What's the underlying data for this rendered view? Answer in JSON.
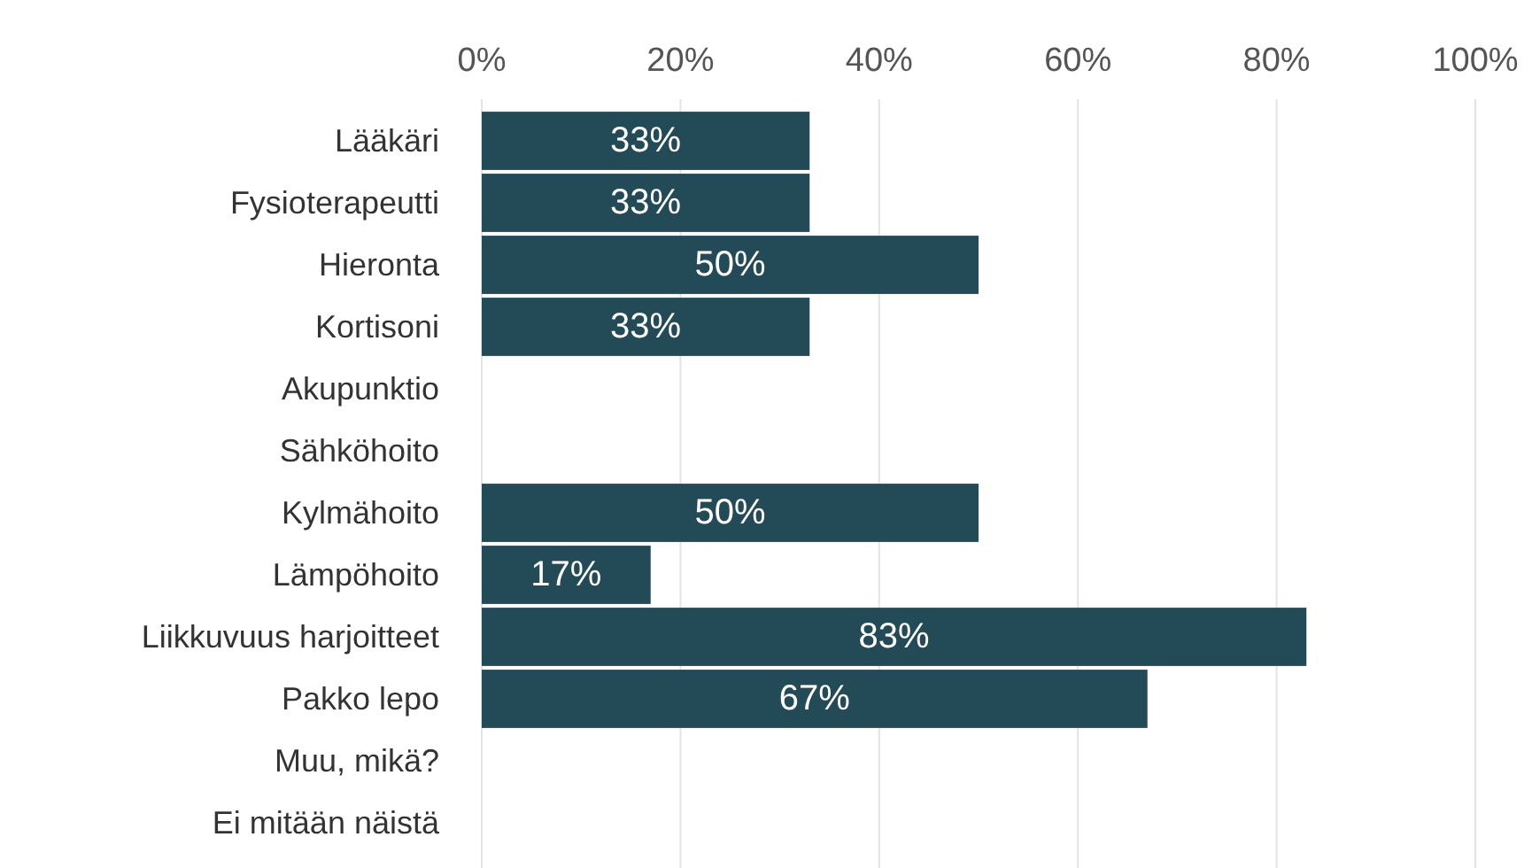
{
  "chart_data": {
    "type": "bar",
    "orientation": "horizontal",
    "categories": [
      "Lääkäri",
      "Fysioterapeutti",
      "Hieronta",
      "Kortisoni",
      "Akupunktio",
      "Sähköhoito",
      "Kylmähoito",
      "Lämpöhoito",
      "Liikkuvuus harjoitteet",
      "Pakko lepo",
      "Muu, mikä?",
      "Ei mitään näistä"
    ],
    "values": [
      33,
      33,
      50,
      33,
      0,
      0,
      50,
      17,
      83,
      67,
      0,
      0
    ],
    "value_labels": [
      "33%",
      "33%",
      "50%",
      "33%",
      null,
      null,
      "50%",
      "17%",
      "83%",
      "67%",
      null,
      null
    ],
    "color": "#234a57",
    "xlim": [
      0,
      100
    ],
    "xticks": [
      {
        "value": 0,
        "label": "0%"
      },
      {
        "value": 20,
        "label": "20%"
      },
      {
        "value": 40,
        "label": "40%"
      },
      {
        "value": 60,
        "label": "60%"
      },
      {
        "value": 80,
        "label": "80%"
      },
      {
        "value": 100,
        "label": "100%"
      }
    ],
    "grid": "x"
  }
}
